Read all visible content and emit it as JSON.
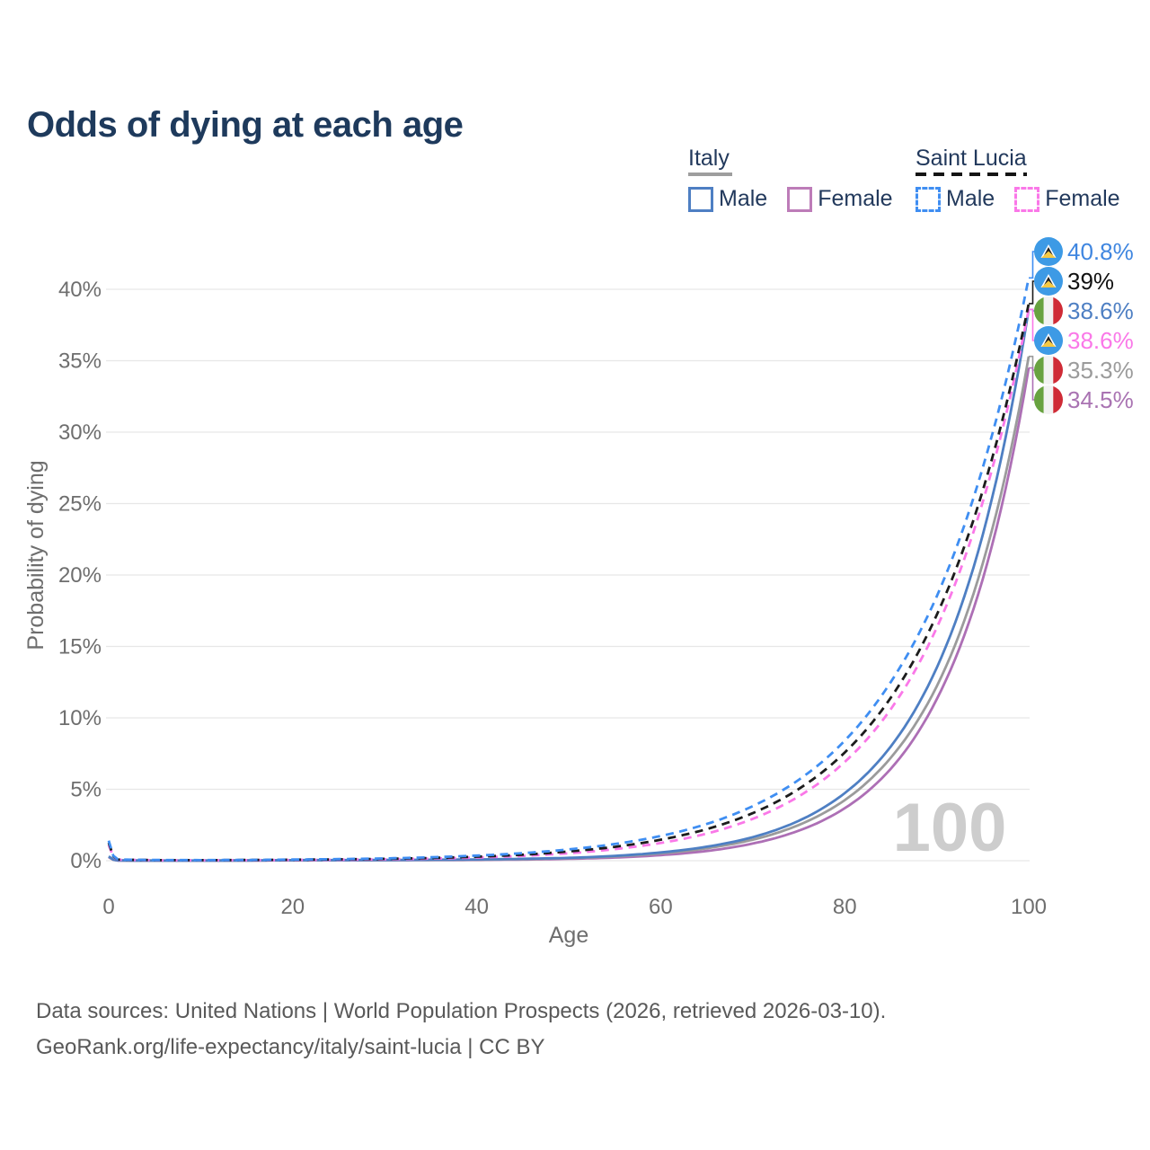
{
  "title": "Odds of dying at each age",
  "legend": {
    "italy": {
      "label": "Italy",
      "male_label": "Male",
      "female_label": "Female"
    },
    "saint_lucia": {
      "label": "Saint Lucia",
      "male_label": "Male",
      "female_label": "Female"
    }
  },
  "chart_data": {
    "type": "line",
    "title": "Odds of dying at each age",
    "xlabel": "Age",
    "ylabel": "Probability of dying",
    "xlim": [
      0,
      100
    ],
    "ylim_percent": [
      0,
      43
    ],
    "x_ticks": [
      0,
      20,
      40,
      60,
      80,
      100
    ],
    "y_ticks": [
      "0%",
      "5%",
      "10%",
      "15%",
      "20%",
      "25%",
      "30%",
      "35%",
      "40%"
    ],
    "grid": "horizontal",
    "watermark": "100",
    "series": [
      {
        "id": "italy-female",
        "country": "Italy",
        "sex": "Female",
        "color": "#ad6fb5",
        "dash": false,
        "flag": "italy",
        "end_label": "34.5%",
        "end_label_color": "#a973b2",
        "x": [
          0,
          1,
          5,
          10,
          20,
          30,
          40,
          45,
          50,
          55,
          60,
          65,
          70,
          75,
          80,
          85,
          90,
          95,
          100
        ],
        "y_percent": [
          0.25,
          0.015,
          0.008,
          0.008,
          0.02,
          0.03,
          0.05,
          0.08,
          0.13,
          0.22,
          0.39,
          0.68,
          1.2,
          2.1,
          3.67,
          6.43,
          11.3,
          19.7,
          34.5
        ]
      },
      {
        "id": "italy-combined",
        "country": "Italy",
        "sex": "Both",
        "color": "#9b9b9b",
        "dash": false,
        "flag": "italy",
        "end_label": "35.3%",
        "end_label_color": "#9b9b9b",
        "x": [
          0,
          1,
          5,
          10,
          20,
          30,
          40,
          45,
          50,
          55,
          60,
          65,
          70,
          75,
          80,
          85,
          90,
          95,
          100
        ],
        "y_percent": [
          0.28,
          0.018,
          0.009,
          0.009,
          0.03,
          0.04,
          0.07,
          0.11,
          0.18,
          0.3,
          0.51,
          0.87,
          1.47,
          2.5,
          4.24,
          7.2,
          12.2,
          20.8,
          35.3
        ]
      },
      {
        "id": "italy-male",
        "country": "Italy",
        "sex": "Male",
        "color": "#4e7fc3",
        "dash": false,
        "flag": "italy",
        "end_label": "38.6%",
        "end_label_color": "#4e7fc3",
        "x": [
          0,
          1,
          5,
          10,
          20,
          30,
          40,
          45,
          50,
          55,
          60,
          65,
          70,
          75,
          80,
          85,
          90,
          95,
          100
        ],
        "y_percent": [
          0.3,
          0.02,
          0.01,
          0.01,
          0.04,
          0.05,
          0.09,
          0.13,
          0.2,
          0.34,
          0.58,
          0.98,
          1.65,
          2.79,
          4.73,
          7.99,
          13.5,
          22.8,
          38.6
        ]
      },
      {
        "id": "saint-lucia-female",
        "country": "Saint Lucia",
        "sex": "Female",
        "color": "#fa78e8",
        "dash": true,
        "flag": "saint-lucia",
        "end_label": "38.6%",
        "end_label_color": "#fa78e8",
        "x": [
          0,
          1,
          5,
          10,
          20,
          30,
          40,
          45,
          50,
          55,
          60,
          65,
          70,
          75,
          80,
          85,
          90,
          95,
          100
        ],
        "y_percent": [
          1.1,
          0.07,
          0.035,
          0.03,
          0.05,
          0.1,
          0.22,
          0.34,
          0.52,
          0.81,
          1.24,
          1.9,
          2.93,
          4.5,
          6.91,
          10.6,
          16.3,
          25.1,
          38.6
        ]
      },
      {
        "id": "saint-lucia-combined",
        "country": "Saint Lucia",
        "sex": "Both",
        "color": "#1c1c1c",
        "dash": true,
        "flag": "saint-lucia",
        "end_label": "39%",
        "end_label_color": "#111111",
        "x": [
          0,
          1,
          5,
          10,
          20,
          30,
          40,
          45,
          50,
          55,
          60,
          65,
          70,
          75,
          80,
          85,
          90,
          95,
          100
        ],
        "y_percent": [
          1.25,
          0.08,
          0.04,
          0.035,
          0.07,
          0.13,
          0.28,
          0.42,
          0.65,
          0.97,
          1.47,
          2.21,
          3.33,
          5.02,
          7.57,
          11.4,
          17.2,
          25.9,
          39.0
        ]
      },
      {
        "id": "saint-lucia-male",
        "country": "Saint Lucia",
        "sex": "Male",
        "color": "#3f8ef2",
        "dash": true,
        "flag": "saint-lucia",
        "end_label": "40.8%",
        "end_label_color": "#3f86e0",
        "x": [
          0,
          1,
          5,
          10,
          20,
          30,
          40,
          45,
          50,
          55,
          60,
          65,
          70,
          75,
          80,
          85,
          90,
          95,
          100
        ],
        "y_percent": [
          1.4,
          0.09,
          0.05,
          0.04,
          0.08,
          0.16,
          0.36,
          0.53,
          0.79,
          1.17,
          1.73,
          2.57,
          3.82,
          5.66,
          8.4,
          12.5,
          18.5,
          27.5,
          40.8
        ]
      }
    ],
    "end_label_order_top_to_bottom": [
      "saint-lucia-male",
      "saint-lucia-combined",
      "italy-male",
      "saint-lucia-female",
      "italy-combined",
      "italy-female"
    ],
    "legend_position": "top-right"
  },
  "footer": {
    "line1": "Data sources: United Nations | World Population Prospects (2026, retrieved 2026-03-10).",
    "line2": "GeoRank.org/life-expectancy/italy/saint-lucia | CC BY"
  }
}
